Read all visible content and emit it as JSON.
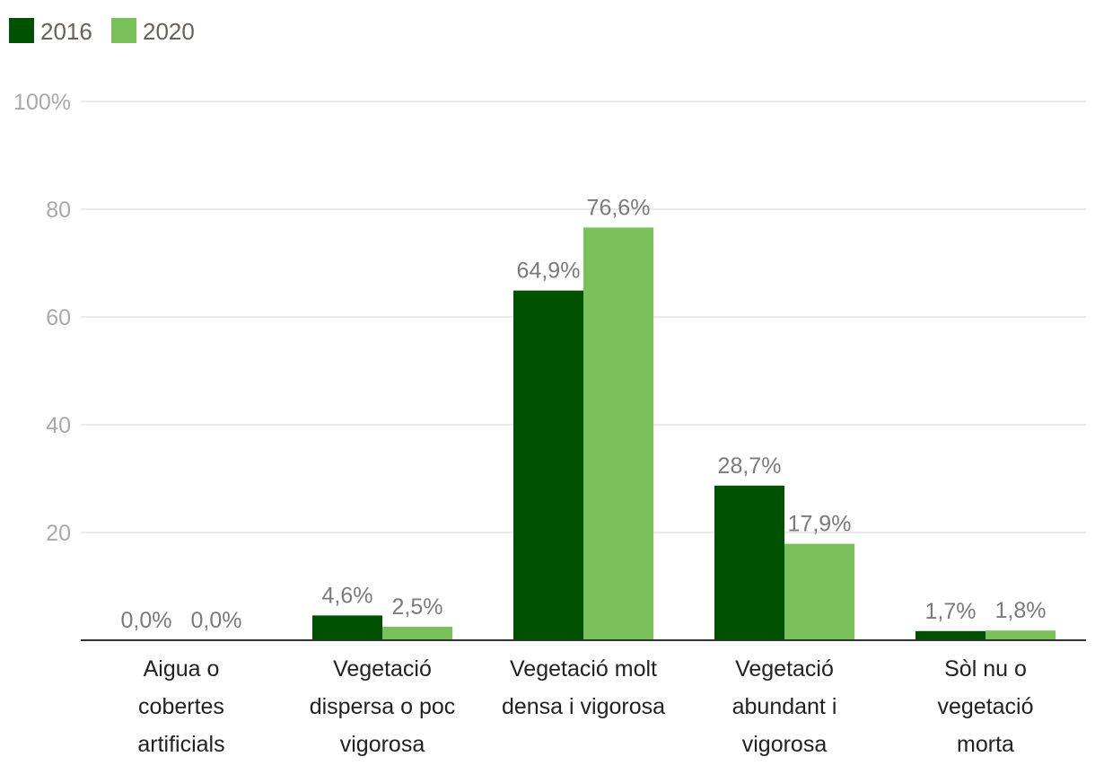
{
  "chart_data": {
    "type": "bar",
    "title": "",
    "xlabel": "",
    "ylabel": "",
    "ylim": [
      0,
      100
    ],
    "y_ticks": [
      {
        "value": 20,
        "label": "20"
      },
      {
        "value": 40,
        "label": "40"
      },
      {
        "value": 60,
        "label": "60"
      },
      {
        "value": 80,
        "label": "80"
      },
      {
        "value": 100,
        "label": "100%"
      }
    ],
    "grid": true,
    "legend_position": "top-left",
    "categories": [
      [
        "Aigua o",
        "cobertes",
        "artificials"
      ],
      [
        "Vegetació",
        "dispersa o poc",
        "vigorosa"
      ],
      [
        "Vegetació molt",
        "densa i vigorosa"
      ],
      [
        "Vegetació",
        "abundant i",
        "vigorosa"
      ],
      [
        "Sòl nu o",
        "vegetació",
        "morta"
      ]
    ],
    "series": [
      {
        "name": "2016",
        "color": "#005200",
        "values": [
          0.0,
          4.6,
          64.9,
          28.7,
          1.7
        ],
        "labels": [
          "0,0%",
          "4,6%",
          "64,9%",
          "28,7%",
          "1,7%"
        ]
      },
      {
        "name": "2020",
        "color": "#79c15a",
        "values": [
          0.0,
          2.5,
          76.6,
          17.9,
          1.8
        ],
        "labels": [
          "0,0%",
          "2,5%",
          "76,6%",
          "17,9%",
          "1,8%"
        ]
      }
    ]
  }
}
